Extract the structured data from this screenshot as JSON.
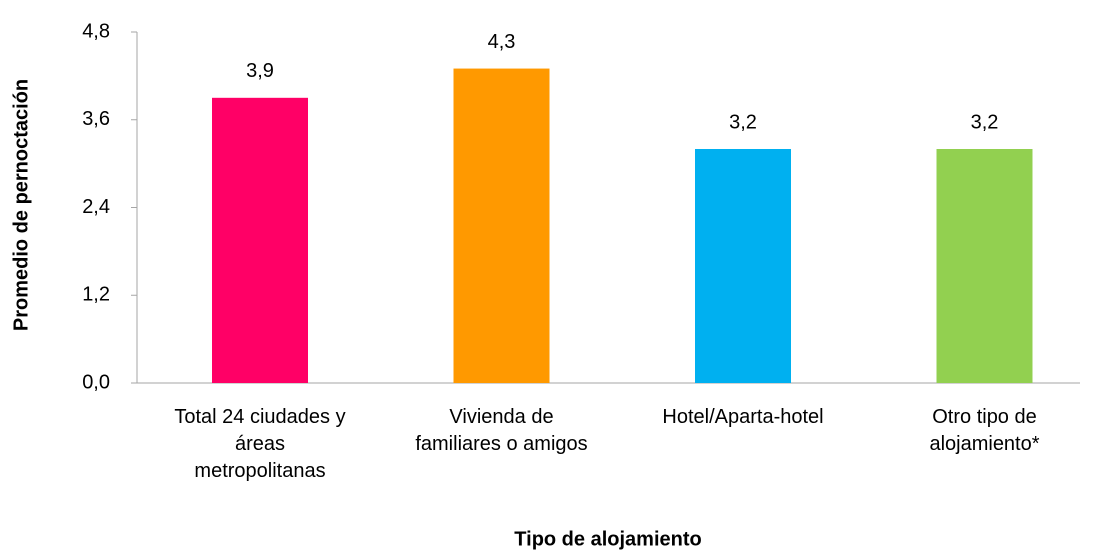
{
  "chart_data": {
    "type": "bar",
    "x_label": "Tipo de alojamiento",
    "y_label": "Promedio de pernoctación",
    "categories": [
      "Total 24 ciudades y\náreas\nmetropolitanas",
      "Vivienda de\nfamiliares o amigos",
      "Hotel/Aparta-hotel",
      "Otro tipo de\nalojamiento*"
    ],
    "values": [
      3.9,
      4.3,
      3.2,
      3.2
    ],
    "value_labels": [
      "3,9",
      "4,3",
      "3,2",
      "3,2"
    ],
    "colors": [
      "#ff0066",
      "#ff9900",
      "#00b0f0",
      "#92d050"
    ],
    "ylim": [
      0,
      4.8
    ],
    "yticks": [
      {
        "value": 0,
        "label": "0,0"
      },
      {
        "value": 1.2,
        "label": "1,2"
      },
      {
        "value": 2.4,
        "label": "2,4"
      },
      {
        "value": 3.6,
        "label": "3,6"
      },
      {
        "value": 4.8,
        "label": "4,8"
      }
    ],
    "grid": false
  }
}
